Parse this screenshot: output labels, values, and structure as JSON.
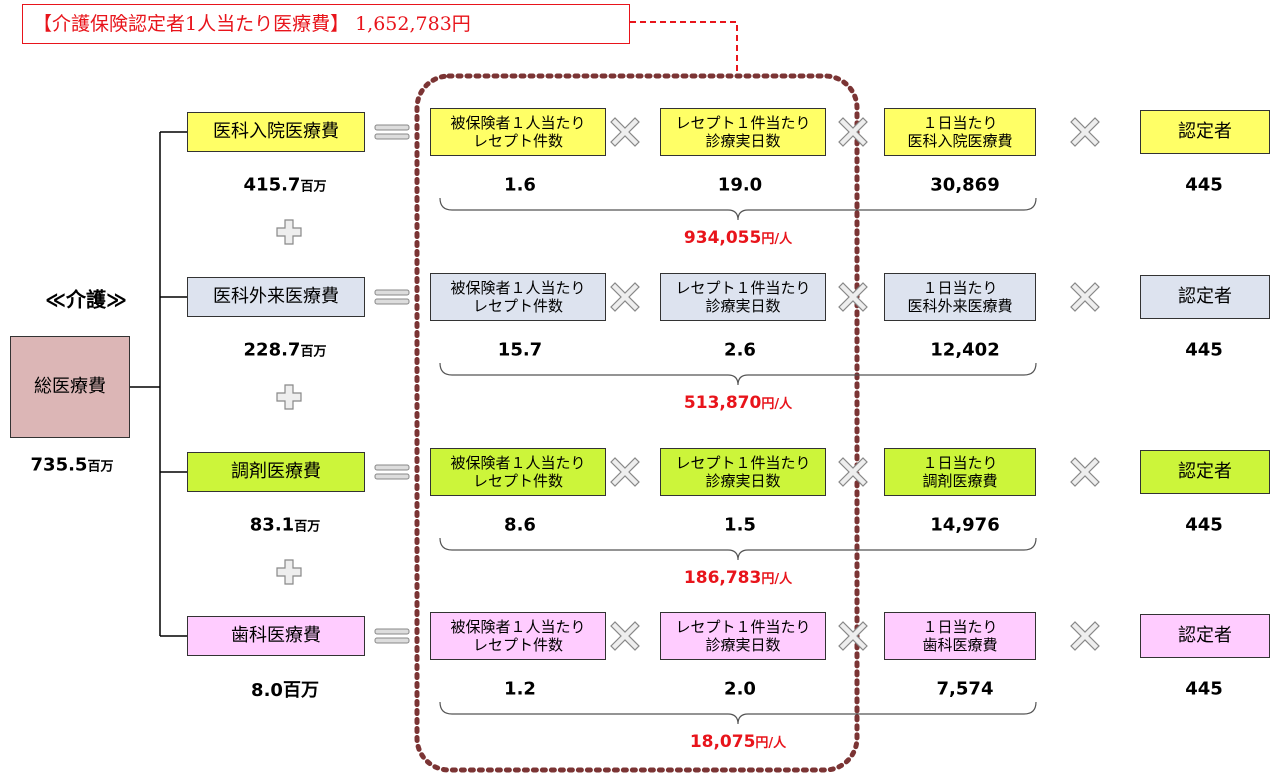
{
  "header": {
    "title": "【介護保険認定者1人当たり医療費】",
    "value": "1,652,783円"
  },
  "section_label": "≪介護≫",
  "total": {
    "label": "総医療費",
    "amount": "735.5",
    "unit": "百万",
    "color": "#dcb6b6"
  },
  "rows": [
    {
      "label": "医科入院医療費",
      "amount": "415.7",
      "unit": "百万",
      "color": "#ffff66",
      "factors": [
        {
          "lines": [
            "被保険者１人当たり",
            "レセプト件数"
          ],
          "value": "1.6"
        },
        {
          "lines": [
            "レセプト１件当たり",
            "診療実日数"
          ],
          "value": "19.0"
        },
        {
          "lines": [
            "１日当たり",
            "医科入院医療費"
          ],
          "value": "30,869"
        }
      ],
      "count_label": "認定者",
      "count": "445",
      "result": "934,055",
      "result_unit": "円/人"
    },
    {
      "label": "医科外来医療費",
      "amount": "228.7",
      "unit": "百万",
      "color": "#dde3ef",
      "factors": [
        {
          "lines": [
            "被保険者１人当たり",
            "レセプト件数"
          ],
          "value": "15.7"
        },
        {
          "lines": [
            "レセプト１件当たり",
            "診療実日数"
          ],
          "value": "2.6"
        },
        {
          "lines": [
            "１日当たり",
            "医科外来医療費"
          ],
          "value": "12,402"
        }
      ],
      "count_label": "認定者",
      "count": "445",
      "result": "513,870",
      "result_unit": "円/人"
    },
    {
      "label": "調剤医療費",
      "amount": "83.1",
      "unit": "百万",
      "color": "#ccf53a",
      "factors": [
        {
          "lines": [
            "被保険者１人当たり",
            "レセプト件数"
          ],
          "value": "8.6"
        },
        {
          "lines": [
            "レセプト１件当たり",
            "診療実日数"
          ],
          "value": "1.5"
        },
        {
          "lines": [
            "１日当たり",
            "調剤医療費"
          ],
          "value": "14,976"
        }
      ],
      "count_label": "認定者",
      "count": "445",
      "result": "186,783",
      "result_unit": "円/人"
    },
    {
      "label": "歯科医療費",
      "amount": "8.0",
      "unit": "百万",
      "color": "#ffccff",
      "factors": [
        {
          "lines": [
            "被保険者１人当たり",
            "レセプト件数"
          ],
          "value": "1.2"
        },
        {
          "lines": [
            "レセプト１件当たり",
            "診療実日数"
          ],
          "value": "2.0"
        },
        {
          "lines": [
            "１日当たり",
            "歯科医療費"
          ],
          "value": "7,574"
        }
      ],
      "count_label": "認定者",
      "count": "445",
      "result": "18,075",
      "result_unit": "円/人"
    }
  ]
}
